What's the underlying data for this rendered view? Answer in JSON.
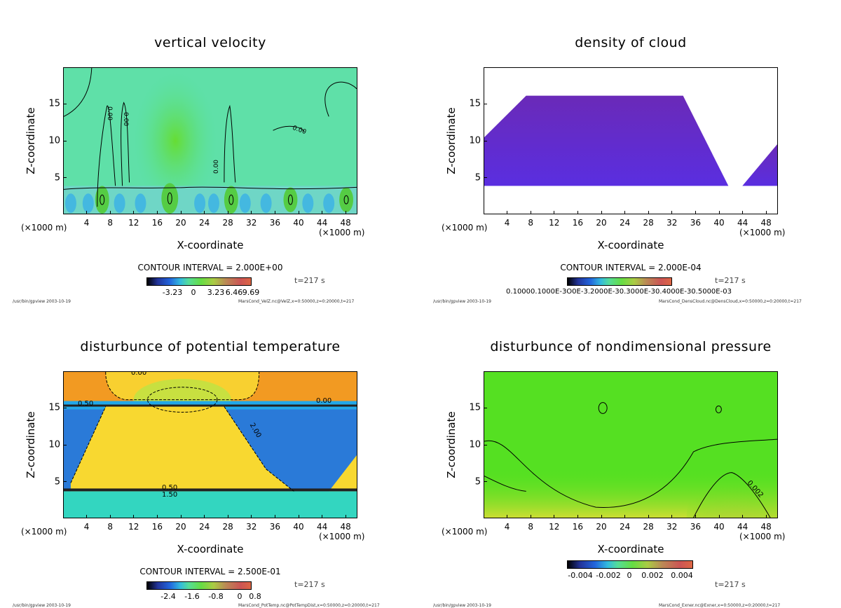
{
  "common": {
    "ylabel": "Z-coordinate",
    "xlabel": "X-coordinate",
    "unit_left": "(×1000 m)",
    "unit_right": "(×1000 m)",
    "time_label": "t=217 s",
    "program": "/usr/bin/gpview  2003-10-19",
    "x_ticks": [
      "4",
      "8",
      "12",
      "16",
      "20",
      "24",
      "28",
      "32",
      "36",
      "40",
      "44",
      "48"
    ],
    "y_ticks": [
      "15",
      "10",
      "5"
    ]
  },
  "chart_data": [
    {
      "type": "heatmap",
      "title": "vertical velocity",
      "xlabel": "X-coordinate",
      "ylabel": "Z-coordinate",
      "xlim": [
        0,
        50
      ],
      "ylim": [
        0,
        20
      ],
      "contour_interval": "CONTOUR INTERVAL = 2.000E+00",
      "contour_labels": [
        "0.00",
        "0.00",
        "0.00",
        "0.00",
        "0.00"
      ],
      "colorbar_ticks": [
        "-3.23",
        "0",
        "3.23",
        "6.46",
        "9.69"
      ],
      "colorbar_range": [
        -5,
        11
      ],
      "file_label": "MarsCond_VelZ.nc@VelZ,x=0:50000,z=0:20000,t=217",
      "time_label": "t=217 s"
    },
    {
      "type": "heatmap",
      "title": "density of cloud",
      "xlabel": "X-coordinate",
      "ylabel": "Z-coordinate",
      "xlim": [
        0,
        50
      ],
      "ylim": [
        0,
        20
      ],
      "contour_interval": "CONTOUR INTERVAL = 2.000E-04",
      "colorbar_ticks": [
        "0.10000.1000E-3",
        "0.2000E-03",
        "0.3000E-03",
        "0.4000E-03",
        "0.5000E-03"
      ],
      "colorbar_tick_text": "0.10000.1000E-3O0E-3.2000E-30.3000E-30.4000E-30.5000E-03",
      "file_label": "MarsCond_DensCloud.nc@DensCloud,x=0:50000,z=0:20000,t=217",
      "time_label": "t=217 s"
    },
    {
      "type": "heatmap",
      "title": "disturbunce of potential temperature",
      "xlabel": "X-coordinate",
      "ylabel": "Z-coordinate",
      "xlim": [
        0,
        50
      ],
      "ylim": [
        0,
        20
      ],
      "contour_interval": "CONTOUR INTERVAL = 2.500E-01",
      "contour_labels": [
        "0.00",
        "0.50",
        "0.00",
        "2.00",
        "0.50",
        "1.50"
      ],
      "colorbar_ticks": [
        "-2.4",
        "-1.6",
        "-0.8",
        "0",
        "0.8"
      ],
      "colorbar_range": [
        -3,
        1
      ],
      "file_label": "MarsCond_PotTemp.nc@PotTempDist,x=0:50000,z=0:20000,t=217",
      "time_label": "t=217 s"
    },
    {
      "type": "heatmap",
      "title": "disturbunce of nondimensional pressure",
      "xlabel": "X-coordinate",
      "ylabel": "Z-coordinate",
      "xlim": [
        0,
        50
      ],
      "ylim": [
        0,
        20
      ],
      "contour_labels": [
        "0.002"
      ],
      "colorbar_ticks": [
        "-0.004",
        "-0.002",
        "0",
        "0.002",
        "0.004"
      ],
      "colorbar_range": [
        -0.005,
        0.005
      ],
      "file_label": "MarsCond_Exner.nc@Exner,x=0:50000,z=0:20000,t=217",
      "time_label": "t=217 s"
    }
  ]
}
